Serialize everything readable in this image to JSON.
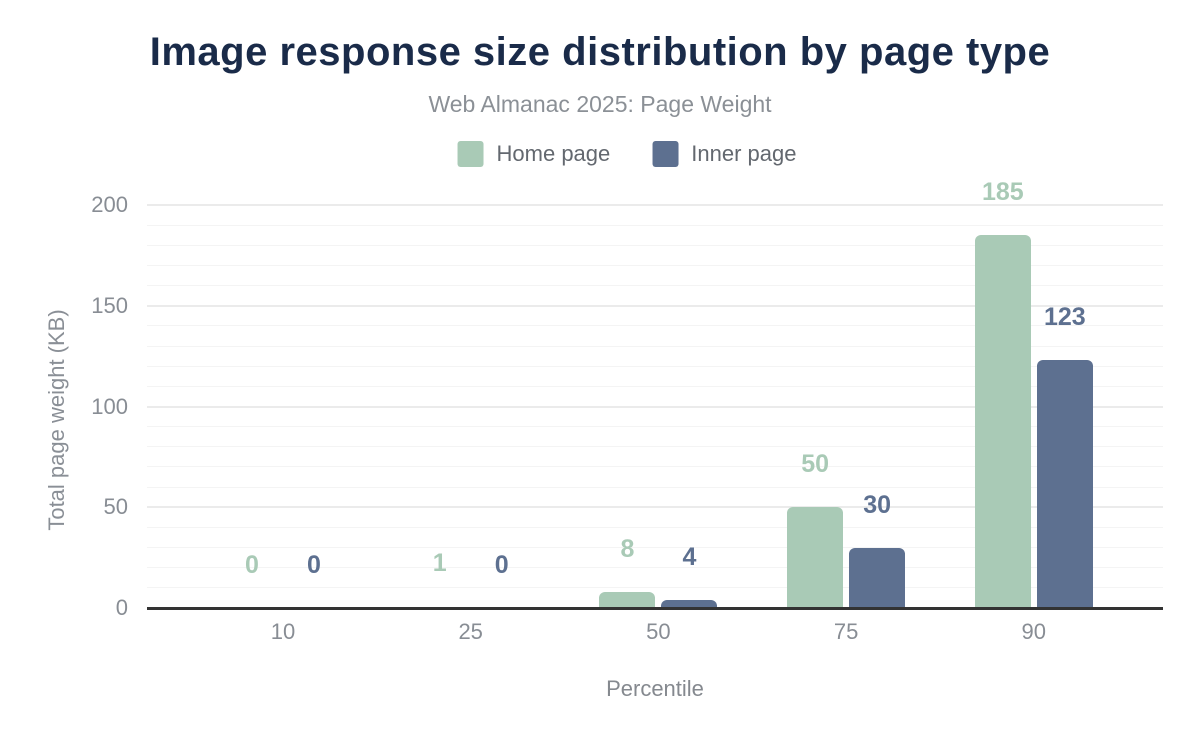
{
  "title": "Image response size distribution by page type",
  "subtitle": "Web Almanac 2025: Page Weight",
  "chart_data": {
    "type": "bar",
    "title": "Image response size distribution by page type",
    "subtitle": "Web Almanac 2025: Page Weight",
    "categories": [
      "10",
      "25",
      "50",
      "75",
      "90"
    ],
    "series": [
      {
        "name": "Home page",
        "color": "#a9cab6",
        "values": [
          0,
          1,
          8,
          50,
          185
        ]
      },
      {
        "name": "Inner page",
        "color": "#5d7090",
        "values": [
          0,
          0,
          4,
          30,
          123
        ]
      }
    ],
    "xlabel": "Percentile",
    "ylabel": "Total page weight (KB)",
    "ylim": [
      0,
      200
    ],
    "yticks": [
      0,
      50,
      100,
      150,
      200
    ],
    "grid": {
      "minor_step": 10,
      "major_step": 50,
      "visible": true
    },
    "legend_position": "top",
    "value_labels_shown": true
  },
  "colors": {
    "title": "#1a2b49",
    "subtitle": "#8b9096",
    "axis_text": "#888d94",
    "legend_text": "#63686f",
    "axis_line": "#333333",
    "grid_major": "#ebebeb",
    "grid_minor": "#f4f4f4",
    "background": "#ffffff"
  }
}
